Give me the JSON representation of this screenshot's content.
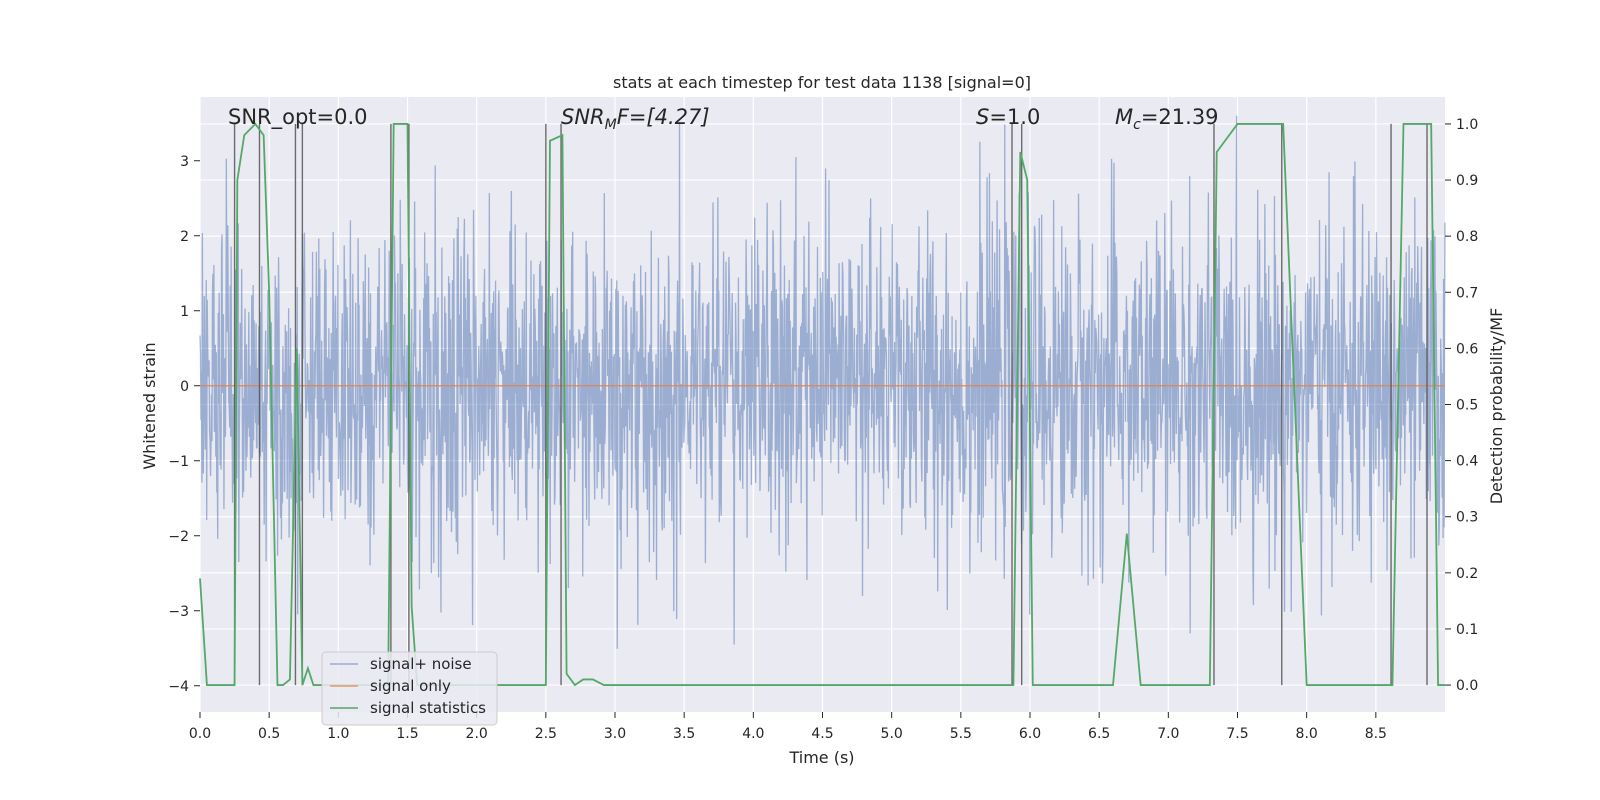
{
  "chart_data": {
    "type": "line",
    "title": "stats at each timestep for test data 1138 [signal=0]",
    "xlabel": "Time (s)",
    "ylabel": "Whitened strain",
    "y2label": "Detection probability/MF",
    "xlim": [
      0,
      9.0
    ],
    "ylim": [
      -4.35,
      3.85
    ],
    "y2lim": [
      -0.048,
      1.048
    ],
    "x_ticks": [
      0.0,
      0.5,
      1.0,
      1.5,
      2.0,
      2.5,
      3.0,
      3.5,
      4.0,
      4.5,
      5.0,
      5.5,
      6.0,
      6.5,
      7.0,
      7.5,
      8.0,
      8.5
    ],
    "x_tick_labels": [
      "0.0",
      "0.5",
      "1.0",
      "1.5",
      "2.0",
      "2.5",
      "3.0",
      "3.5",
      "4.0",
      "4.5",
      "5.0",
      "5.5",
      "6.0",
      "6.5",
      "7.0",
      "7.5",
      "8.0",
      "8.5"
    ],
    "y_ticks": [
      -4,
      -3,
      -2,
      -1,
      0,
      1,
      2,
      3
    ],
    "y_tick_labels": [
      "−4",
      "−3",
      "−2",
      "−1",
      "0",
      "1",
      "2",
      "3"
    ],
    "y2_ticks": [
      0.0,
      0.1,
      0.2,
      0.3,
      0.4,
      0.5,
      0.6,
      0.7,
      0.8,
      0.9,
      1.0
    ],
    "y2_tick_labels": [
      "0.0",
      "0.1",
      "0.2",
      "0.3",
      "0.4",
      "0.5",
      "0.6",
      "0.7",
      "0.8",
      "0.9",
      "1.0"
    ],
    "grid": true,
    "legend_position": "bottom-left",
    "annotations": {
      "snr_opt": "SNR_opt=0.0",
      "snr_mf_main": "SNR",
      "snr_mf_sub": "M",
      "snr_mf_rest": "F=[4.27]",
      "s_main": "S",
      "s_rest": "=1.0",
      "mc_main": "M",
      "mc_sub": "c",
      "mc_rest": "=21.39"
    },
    "series": [
      {
        "name": "signal+ noise",
        "color": "#4c72b0",
        "description": "whitened noise, roughly symmetric about 0",
        "envelope": {
          "typical": 1.4,
          "max": 3.6,
          "min": -3.7
        }
      },
      {
        "name": "signal only",
        "color": "#dd8452",
        "values_constant": 0.0
      },
      {
        "name": "signal statistics",
        "color": "#55a868",
        "axis": "right",
        "x": [
          0.0,
          0.05,
          0.25,
          0.27,
          0.32,
          0.4,
          0.46,
          0.5,
          0.56,
          0.6,
          0.65,
          0.7,
          0.74,
          0.78,
          0.82,
          0.86,
          0.9,
          1.0,
          1.2,
          1.36,
          1.4,
          1.44,
          1.5,
          1.53,
          1.57,
          1.62,
          1.7,
          2.0,
          2.5,
          2.53,
          2.62,
          2.65,
          2.71,
          2.77,
          2.84,
          2.92,
          3.0,
          3.5,
          4.0,
          5.0,
          5.5,
          5.88,
          5.93,
          5.98,
          6.02,
          6.05,
          6.5,
          6.6,
          6.7,
          6.8,
          7.0,
          7.3,
          7.35,
          7.5,
          7.83,
          8.0,
          8.5,
          8.62,
          8.7,
          8.9,
          8.95,
          9.0
        ],
        "values": [
          0.19,
          0.0,
          0.0,
          0.9,
          0.98,
          1.0,
          0.98,
          0.7,
          0.0,
          0.0,
          0.01,
          0.6,
          0.0,
          0.03,
          0.0,
          0.0,
          0.0,
          0.0,
          0.0,
          0.0,
          1.0,
          1.0,
          1.0,
          0.14,
          0.0,
          0.0,
          0.0,
          0.0,
          0.0,
          0.97,
          0.98,
          0.02,
          0.0,
          0.01,
          0.01,
          0.0,
          0.0,
          0.0,
          0.0,
          0.0,
          0.0,
          0.0,
          0.95,
          0.9,
          0.0,
          0.0,
          0.0,
          0.0,
          0.27,
          0.0,
          0.0,
          0.0,
          0.95,
          1.0,
          1.0,
          0.0,
          0.0,
          0.0,
          1.0,
          1.0,
          0.0,
          0.0
        ]
      }
    ],
    "vlines_x": [
      0.25,
      0.43,
      0.69,
      0.74,
      1.38,
      1.51,
      2.5,
      2.61,
      5.87,
      5.94,
      7.33,
      7.82,
      8.61,
      8.87
    ]
  }
}
